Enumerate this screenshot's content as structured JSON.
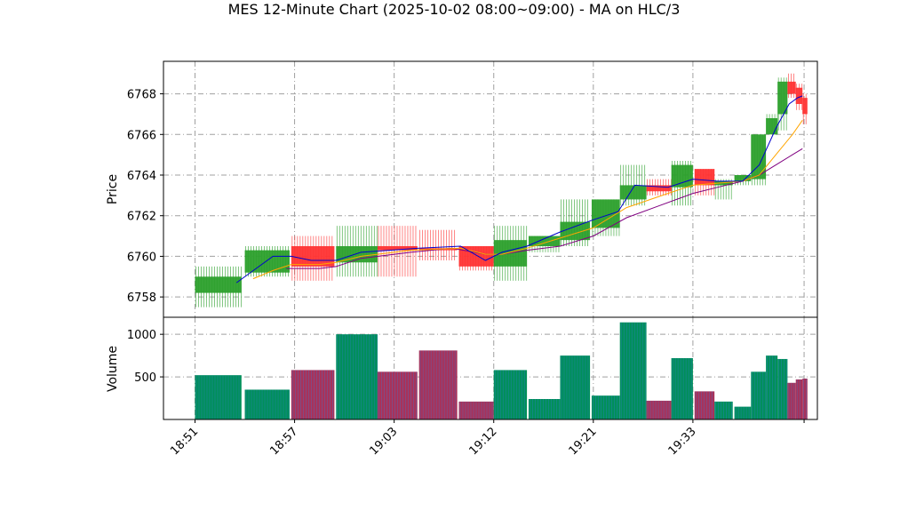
{
  "chart_data": {
    "type": "candlestick",
    "title": "MES 12-Minute Chart (2025-10-02 08:00~09:00) - MA on HLC/3",
    "ylabel_price": "Price",
    "ylabel_volume": "Volume",
    "price_ylim": [
      6757.0,
      6769.6
    ],
    "price_yticks": [
      6758,
      6760,
      6762,
      6764,
      6766,
      6768
    ],
    "volume_ylim": [
      0,
      1200
    ],
    "volume_yticks": [
      500,
      1000
    ],
    "xtick_labels": [
      "18:51",
      "18:57",
      "19:03",
      "19:12",
      "19:21",
      "19:33"
    ],
    "xtick_positions": [
      0,
      6,
      12,
      18,
      24,
      30
    ],
    "x_range": [
      -1.9,
      37.5
    ],
    "grid": true,
    "colors": {
      "up": "#2ca02c",
      "down": "#ff3333",
      "ma_short": "#0000cc",
      "ma_mid": "#ffa500",
      "ma_long": "#800080",
      "vol_up": "#008f5a",
      "vol_down": "#a8325a"
    },
    "bars": [
      {
        "x": 0,
        "w": 2.8,
        "o": 6758.2,
        "h": 6759.5,
        "l": 6757.5,
        "c": 6759.0,
        "v": 520
      },
      {
        "x": 3,
        "w": 2.7,
        "o": 6759.2,
        "h": 6760.5,
        "l": 6759.0,
        "c": 6760.3,
        "v": 350
      },
      {
        "x": 5.8,
        "w": 2.6,
        "o": 6760.5,
        "h": 6761.0,
        "l": 6758.8,
        "c": 6759.5,
        "v": 580
      },
      {
        "x": 8.5,
        "w": 2.5,
        "o": 6759.7,
        "h": 6761.5,
        "l": 6759.0,
        "c": 6760.5,
        "v": 1000
      },
      {
        "x": 11,
        "w": 2.4,
        "o": 6760.5,
        "h": 6761.5,
        "l": 6759.0,
        "c": 6760.3,
        "v": 560
      },
      {
        "x": 13.5,
        "w": 2.3,
        "o": 6760.4,
        "h": 6761.3,
        "l": 6759.8,
        "c": 6760.3,
        "v": 810
      },
      {
        "x": 15.9,
        "w": 2.1,
        "o": 6760.5,
        "h": 6760.5,
        "l": 6759.3,
        "c": 6759.5,
        "v": 210
      },
      {
        "x": 18,
        "w": 2.0,
        "o": 6759.5,
        "h": 6761.5,
        "l": 6758.8,
        "c": 6760.8,
        "v": 580
      },
      {
        "x": 20.1,
        "w": 1.9,
        "o": 6760.5,
        "h": 6761.0,
        "l": 6760.2,
        "c": 6761.0,
        "v": 240
      },
      {
        "x": 22,
        "w": 1.8,
        "o": 6760.8,
        "h": 6762.8,
        "l": 6760.5,
        "c": 6761.7,
        "v": 750
      },
      {
        "x": 23.9,
        "w": 1.7,
        "o": 6761.4,
        "h": 6762.8,
        "l": 6761.0,
        "c": 6762.8,
        "v": 280
      },
      {
        "x": 25.6,
        "w": 1.6,
        "o": 6762.8,
        "h": 6764.5,
        "l": 6762.5,
        "c": 6763.5,
        "v": 1140
      },
      {
        "x": 27.2,
        "w": 1.5,
        "o": 6763.5,
        "h": 6763.8,
        "l": 6763.0,
        "c": 6763.2,
        "v": 220
      },
      {
        "x": 28.7,
        "w": 1.3,
        "o": 6763.4,
        "h": 6764.7,
        "l": 6762.5,
        "c": 6764.5,
        "v": 720
      },
      {
        "x": 30.1,
        "w": 1.2,
        "o": 6764.3,
        "h": 6764.3,
        "l": 6763.0,
        "c": 6763.5,
        "v": 330
      },
      {
        "x": 31.3,
        "w": 1.1,
        "o": 6763.5,
        "h": 6763.8,
        "l": 6762.8,
        "c": 6763.7,
        "v": 210
      },
      {
        "x": 32.5,
        "w": 1.0,
        "o": 6763.7,
        "h": 6764.0,
        "l": 6763.5,
        "c": 6764.0,
        "v": 150
      },
      {
        "x": 33.5,
        "w": 0.9,
        "o": 6763.8,
        "h": 6766.0,
        "l": 6763.5,
        "c": 6766.0,
        "v": 560
      },
      {
        "x": 34.4,
        "w": 0.7,
        "o": 6766.0,
        "h": 6767.0,
        "l": 6766.0,
        "c": 6766.8,
        "v": 750
      },
      {
        "x": 35.1,
        "w": 0.6,
        "o": 6767.0,
        "h": 6768.8,
        "l": 6766.2,
        "c": 6768.6,
        "v": 710
      },
      {
        "x": 35.7,
        "w": 0.5,
        "o": 6768.6,
        "h": 6769.0,
        "l": 6767.8,
        "c": 6768.0,
        "v": 430
      },
      {
        "x": 36.2,
        "w": 0.4,
        "o": 6768.3,
        "h": 6768.5,
        "l": 6767.2,
        "c": 6767.5,
        "v": 470
      },
      {
        "x": 36.6,
        "w": 0.3,
        "o": 6767.8,
        "h": 6768.0,
        "l": 6766.5,
        "c": 6767.0,
        "v": 480
      }
    ],
    "ma_short": [
      [
        2.5,
        6758.7
      ],
      [
        4.7,
        6760.0
      ],
      [
        5.8,
        6760.0
      ],
      [
        7.0,
        6759.8
      ],
      [
        8.5,
        6759.8
      ],
      [
        10.0,
        6760.2
      ],
      [
        13.5,
        6760.4
      ],
      [
        16.0,
        6760.5
      ],
      [
        17.5,
        6759.8
      ],
      [
        18.5,
        6760.2
      ],
      [
        20.0,
        6760.5
      ],
      [
        22.0,
        6761.2
      ],
      [
        24.0,
        6761.8
      ],
      [
        25.5,
        6762.2
      ],
      [
        26.5,
        6763.5
      ],
      [
        28.5,
        6763.4
      ],
      [
        30.0,
        6763.8
      ],
      [
        31.5,
        6763.7
      ],
      [
        33.0,
        6763.7
      ],
      [
        34.0,
        6764.5
      ],
      [
        35.0,
        6766.3
      ],
      [
        35.8,
        6767.5
      ],
      [
        36.3,
        6767.8
      ],
      [
        36.6,
        6767.9
      ]
    ],
    "ma_mid": [
      [
        3.5,
        6758.9
      ],
      [
        4.7,
        6759.3
      ],
      [
        5.8,
        6759.6
      ],
      [
        7.5,
        6759.6
      ],
      [
        8.5,
        6759.7
      ],
      [
        10.0,
        6760.0
      ],
      [
        13.0,
        6760.3
      ],
      [
        16.0,
        6760.4
      ],
      [
        17.5,
        6760.1
      ],
      [
        18.5,
        6760.1
      ],
      [
        20.0,
        6760.4
      ],
      [
        22.0,
        6760.9
      ],
      [
        24.0,
        6761.4
      ],
      [
        26.0,
        6762.4
      ],
      [
        28.5,
        6763.1
      ],
      [
        30.0,
        6763.5
      ],
      [
        31.5,
        6763.6
      ],
      [
        33.0,
        6763.7
      ],
      [
        34.0,
        6764.0
      ],
      [
        35.0,
        6765.0
      ],
      [
        36.0,
        6766.0
      ],
      [
        36.6,
        6766.7
      ]
    ],
    "ma_long": [
      [
        5.5,
        6759.4
      ],
      [
        7.5,
        6759.4
      ],
      [
        8.5,
        6759.5
      ],
      [
        10.0,
        6759.9
      ],
      [
        13.0,
        6760.2
      ],
      [
        15.5,
        6760.4
      ],
      [
        17.5,
        6760.1
      ],
      [
        18.5,
        6760.1
      ],
      [
        20.0,
        6760.3
      ],
      [
        22.0,
        6760.5
      ],
      [
        24.0,
        6761.0
      ],
      [
        26.0,
        6761.9
      ],
      [
        28.0,
        6762.5
      ],
      [
        30.0,
        6763.1
      ],
      [
        31.5,
        6763.4
      ],
      [
        33.0,
        6763.7
      ],
      [
        34.0,
        6764.0
      ],
      [
        35.0,
        6764.5
      ],
      [
        36.0,
        6765.0
      ],
      [
        36.6,
        6765.3
      ]
    ]
  }
}
